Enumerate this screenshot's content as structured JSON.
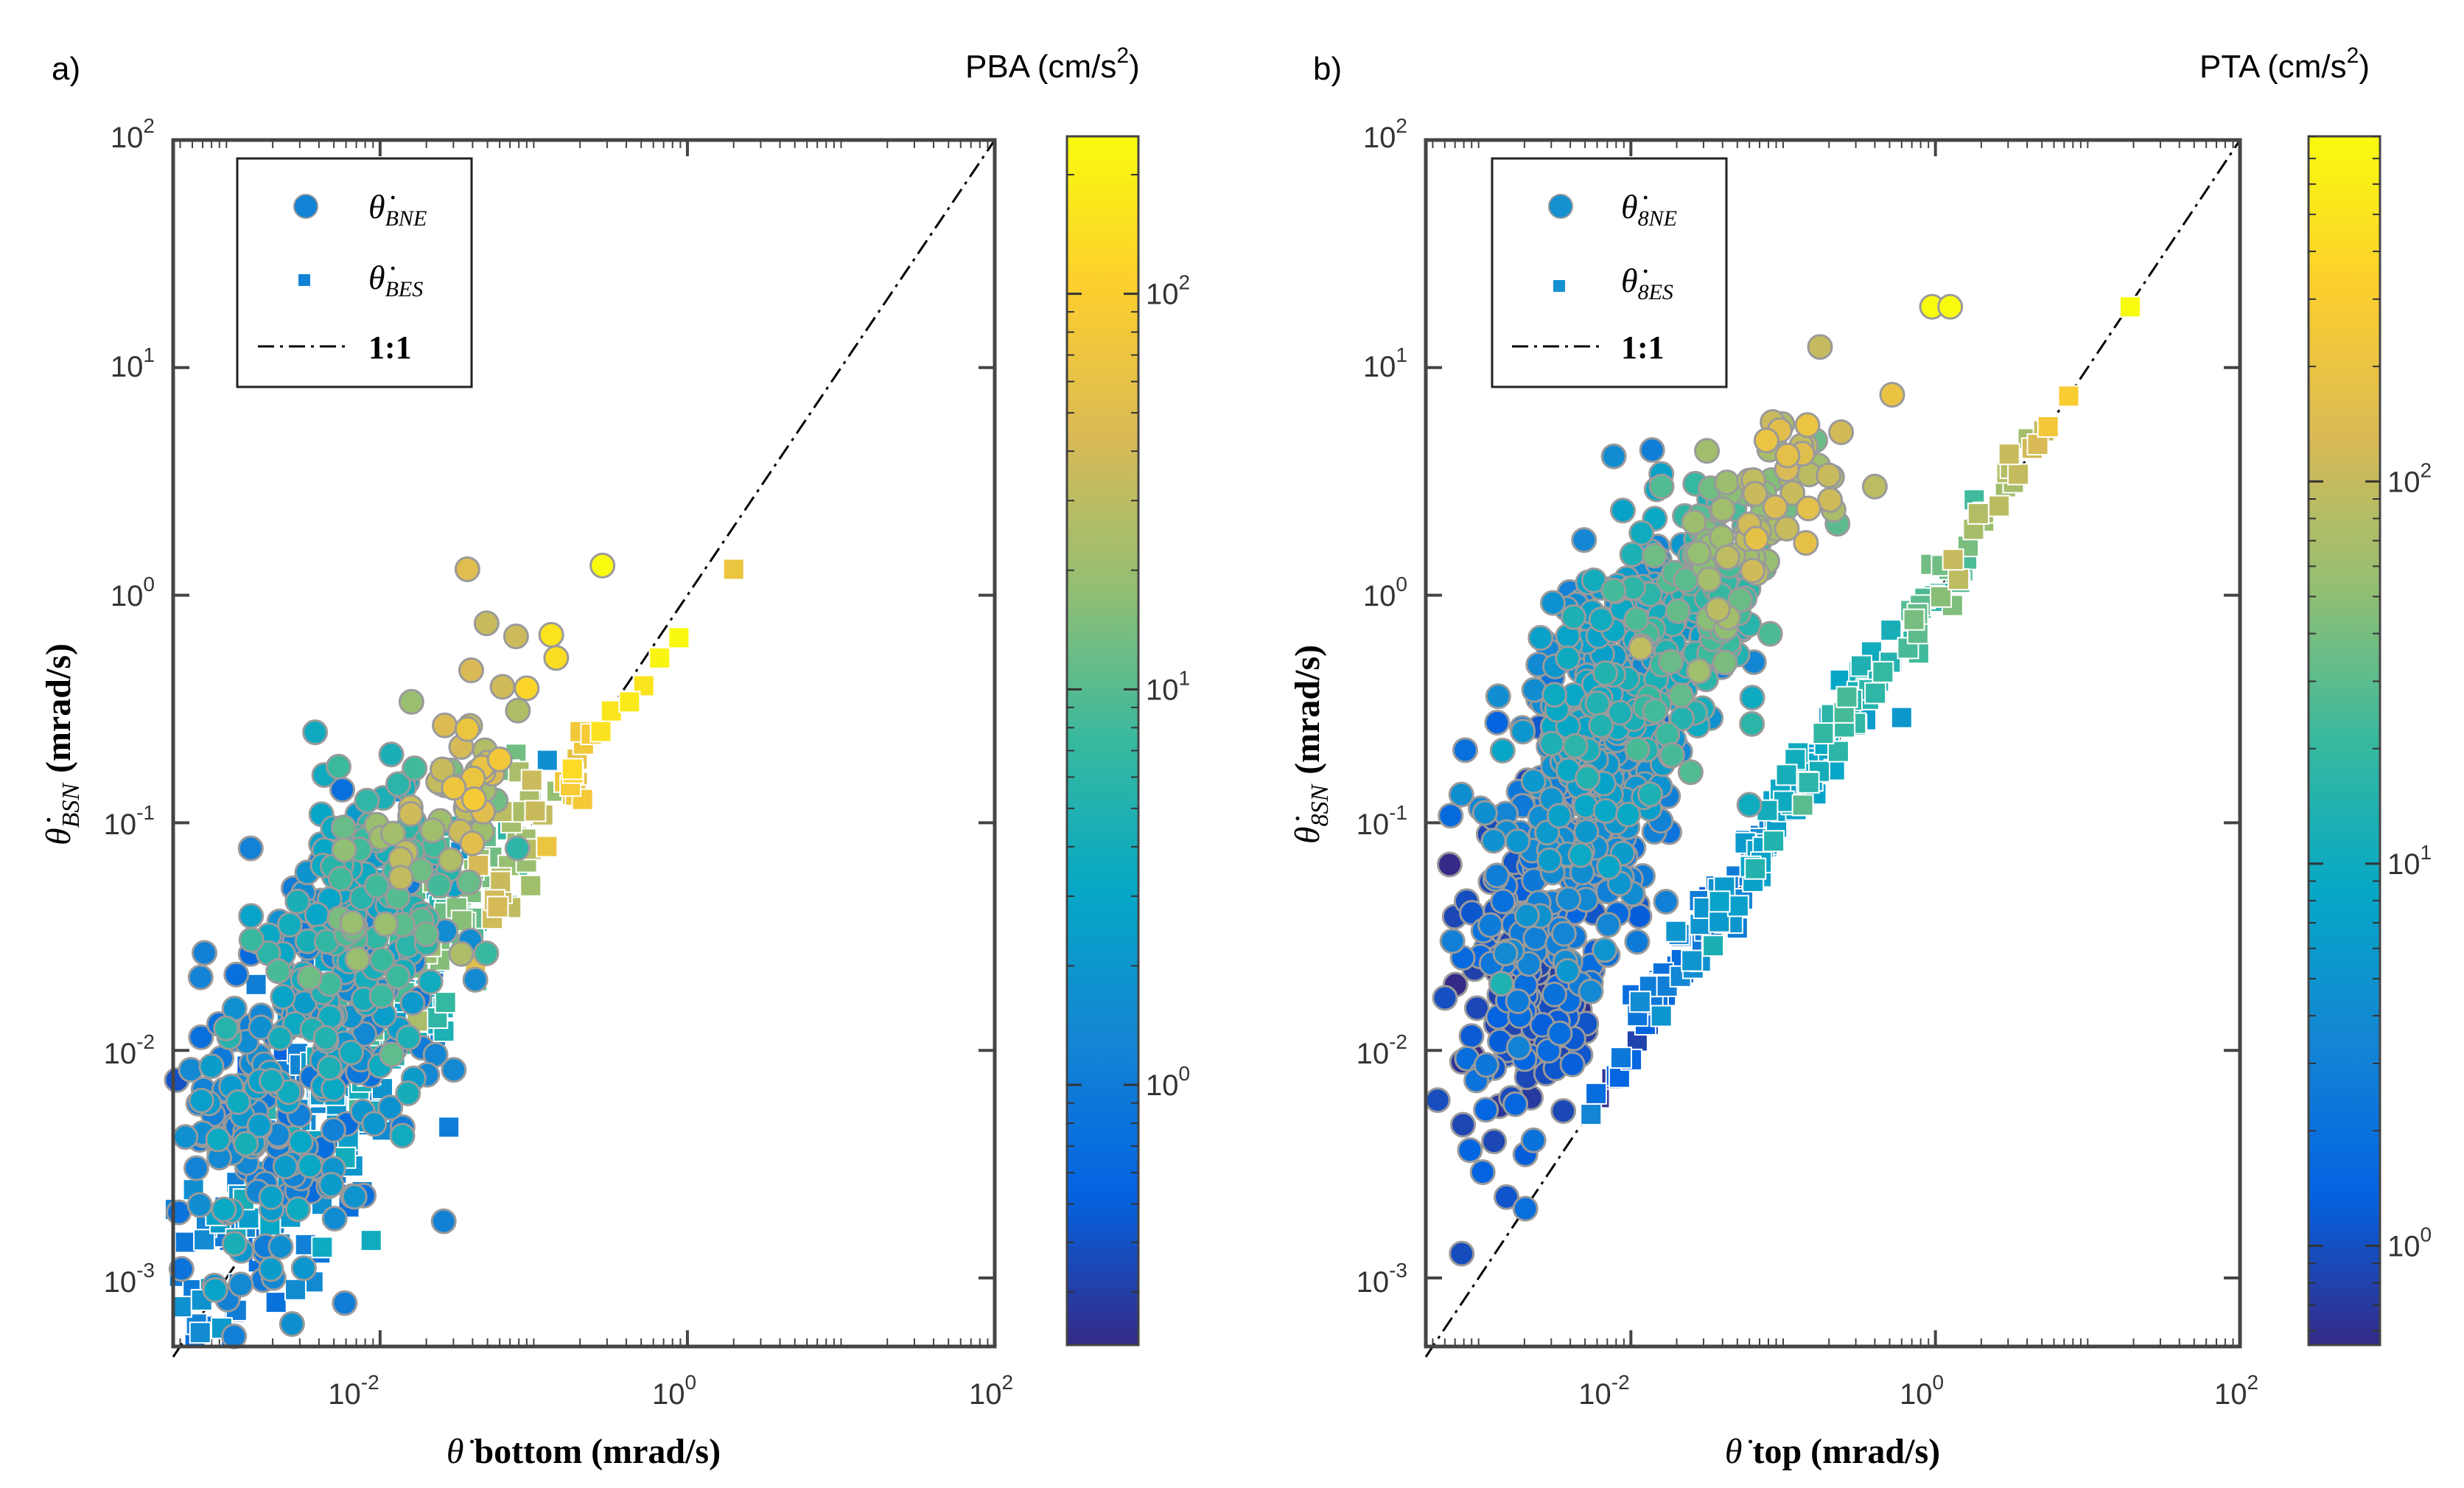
{
  "figure_labels": {
    "a": "a)",
    "b": "b)"
  },
  "chart_data": [
    {
      "id": "a",
      "type": "scatter",
      "panel_label": "a)",
      "xscale": "log",
      "yscale": "log",
      "xlim": [
        0.00045,
        100
      ],
      "ylim": [
        0.0005,
        100
      ],
      "x_ticks": [
        0.01,
        1,
        100
      ],
      "x_tick_labels": [
        {
          "base": "10",
          "exp": "-2"
        },
        {
          "base": "10",
          "exp": "0"
        },
        {
          "base": "10",
          "exp": "2"
        }
      ],
      "y_ticks": [
        0.001,
        0.01,
        0.1,
        1,
        10,
        100
      ],
      "y_tick_labels": [
        {
          "base": "10",
          "exp": "-3"
        },
        {
          "base": "10",
          "exp": "-2"
        },
        {
          "base": "10",
          "exp": "-1"
        },
        {
          "base": "10",
          "exp": "0"
        },
        {
          "base": "10",
          "exp": "1"
        },
        {
          "base": "10",
          "exp": "2"
        }
      ],
      "xlabel_prefix": "θ̇",
      "xlabel_main": "bottom (mrad/s)",
      "ylabel_symbol": "θ̇",
      "ylabel_sub": "BSN",
      "ylabel_main": "(mrad/s)",
      "colorbar": {
        "title": "PBA (cm/s",
        "title_exp": "2",
        "title_close": ")",
        "scale": "log",
        "range": [
          0.22,
          250
        ],
        "ticks": [
          1,
          10,
          100
        ],
        "tick_labels": [
          {
            "base": "10",
            "exp": "0"
          },
          {
            "base": "10",
            "exp": "1"
          },
          {
            "base": "10",
            "exp": "2"
          }
        ]
      },
      "legend": [
        {
          "marker": "circle",
          "symbol": "θ̇",
          "sub": "BNE"
        },
        {
          "marker": "square",
          "symbol": "θ̇",
          "sub": "BES"
        },
        {
          "marker": "dashdot",
          "label": "1:1"
        }
      ],
      "one_to_one": [
        [
          0.00045,
          0.00045
        ],
        [
          100,
          100
        ]
      ],
      "series": [
        {
          "name": "θ̇BNE",
          "marker": "circle",
          "clusters": [
            {
              "x": 0.002,
              "y": 0.006,
              "sx": 0.55,
              "sy": 0.5,
              "n": 150,
              "c": 1.0
            },
            {
              "x": 0.0035,
              "y": 0.013,
              "sx": 0.4,
              "sy": 0.45,
              "n": 110,
              "c": 2.0
            },
            {
              "x": 0.006,
              "y": 0.025,
              "sx": 0.35,
              "sy": 0.4,
              "n": 80,
              "c": 4.0
            },
            {
              "x": 0.012,
              "y": 0.05,
              "sx": 0.3,
              "sy": 0.3,
              "n": 50,
              "c": 8.0
            },
            {
              "x": 0.03,
              "y": 0.11,
              "sx": 0.25,
              "sy": 0.25,
              "n": 30,
              "c": 25.0
            },
            {
              "x": 0.045,
              "y": 0.18,
              "sx": 0.15,
              "sy": 0.15,
              "n": 14,
              "c": 50.0
            }
          ],
          "points": [
            {
              "x": 0.00095,
              "y": 0.0052,
              "c": 0.7
            },
            {
              "x": 0.0013,
              "y": 0.012,
              "c": 1.0
            },
            {
              "x": 0.0016,
              "y": 0.03,
              "c": 1.3
            },
            {
              "x": 0.0024,
              "y": 0.016,
              "c": 1.2
            },
            {
              "x": 0.0056,
              "y": 0.065,
              "c": 5.0
            },
            {
              "x": 0.016,
              "y": 0.34,
              "c": 20
            },
            {
              "x": 0.014,
              "y": 0.0046,
              "c": 1.0
            },
            {
              "x": 0.06,
              "y": 0.19,
              "c": 80
            },
            {
              "x": 0.09,
              "y": 0.39,
              "c": 120
            },
            {
              "x": 0.13,
              "y": 0.67,
              "c": 160
            },
            {
              "x": 0.14,
              "y": 0.53,
              "c": 140
            },
            {
              "x": 0.037,
              "y": 1.3,
              "c": 50
            },
            {
              "x": 0.28,
              "y": 1.35,
              "c": 250
            }
          ]
        },
        {
          "name": "θ̇BES",
          "marker": "square",
          "clusters": [
            {
              "x": 0.003,
              "y": 0.005,
              "sx": 0.45,
              "sy": 0.35,
              "n": 170,
              "c": 1.0
            },
            {
              "x": 0.006,
              "y": 0.012,
              "sx": 0.4,
              "sy": 0.3,
              "n": 130,
              "c": 2.0
            },
            {
              "x": 0.013,
              "y": 0.022,
              "sx": 0.3,
              "sy": 0.25,
              "n": 70,
              "c": 5.0
            },
            {
              "x": 0.03,
              "y": 0.04,
              "sx": 0.25,
              "sy": 0.2,
              "n": 45,
              "c": 12.0
            },
            {
              "x": 0.08,
              "y": 0.08,
              "sx": 0.2,
              "sy": 0.15,
              "n": 25,
              "c": 30.0
            },
            {
              "x": 0.17,
              "y": 0.16,
              "sx": 0.12,
              "sy": 0.1,
              "n": 14,
              "c": 80.0
            }
          ],
          "points": [
            {
              "x": 0.028,
              "y": 0.0046,
              "c": 1.0
            },
            {
              "x": 0.0043,
              "y": 0.0027,
              "c": 0.9
            },
            {
              "x": 0.025,
              "y": 0.06,
              "c": 3.0
            },
            {
              "x": 0.32,
              "y": 0.31,
              "c": 160
            },
            {
              "x": 0.42,
              "y": 0.34,
              "c": 180
            },
            {
              "x": 0.52,
              "y": 0.4,
              "c": 160
            },
            {
              "x": 0.66,
              "y": 0.53,
              "c": 220
            },
            {
              "x": 0.88,
              "y": 0.65,
              "c": 240
            },
            {
              "x": 2.0,
              "y": 1.3,
              "c": 70
            }
          ]
        }
      ]
    },
    {
      "id": "b",
      "type": "scatter",
      "panel_label": "b)",
      "xscale": "log",
      "yscale": "log",
      "xlim": [
        0.00045,
        100
      ],
      "ylim": [
        0.0005,
        100
      ],
      "x_ticks": [
        0.01,
        1,
        100
      ],
      "x_tick_labels": [
        {
          "base": "10",
          "exp": "-2"
        },
        {
          "base": "10",
          "exp": "0"
        },
        {
          "base": "10",
          "exp": "2"
        }
      ],
      "y_ticks": [
        0.001,
        0.01,
        0.1,
        1,
        10,
        100
      ],
      "y_tick_labels": [
        {
          "base": "10",
          "exp": "-3"
        },
        {
          "base": "10",
          "exp": "-2"
        },
        {
          "base": "10",
          "exp": "-1"
        },
        {
          "base": "10",
          "exp": "0"
        },
        {
          "base": "10",
          "exp": "1"
        },
        {
          "base": "10",
          "exp": "2"
        }
      ],
      "xlabel_prefix": "θ̇",
      "xlabel_main": "top (mrad/s)",
      "ylabel_symbol": "θ̇",
      "ylabel_sub": "8SN",
      "ylabel_main": "(mrad/s)",
      "colorbar": {
        "title": "PTA (cm/s",
        "title_exp": "2",
        "title_close": ")",
        "scale": "log",
        "range": [
          0.55,
          800
        ],
        "ticks": [
          1,
          10,
          100
        ],
        "tick_labels": [
          {
            "base": "10",
            "exp": "0"
          },
          {
            "base": "10",
            "exp": "1"
          },
          {
            "base": "10",
            "exp": "2"
          }
        ]
      },
      "legend": [
        {
          "marker": "circle",
          "symbol": "θ̇",
          "sub": "8NE"
        },
        {
          "marker": "square",
          "symbol": "θ̇",
          "sub": "8ES"
        },
        {
          "marker": "dashdot",
          "label": "1:1"
        }
      ],
      "one_to_one": [
        [
          0.00045,
          0.00045
        ],
        [
          100,
          100
        ]
      ],
      "series": [
        {
          "name": "θ̇8NE",
          "marker": "circle",
          "clusters": [
            {
              "x": 0.0022,
              "y": 0.02,
              "sx": 0.28,
              "sy": 0.4,
              "n": 110,
              "c": 1.0
            },
            {
              "x": 0.0035,
              "y": 0.06,
              "sx": 0.3,
              "sy": 0.4,
              "n": 150,
              "c": 2.0
            },
            {
              "x": 0.006,
              "y": 0.2,
              "sx": 0.3,
              "sy": 0.35,
              "n": 200,
              "c": 4.0
            },
            {
              "x": 0.012,
              "y": 0.5,
              "sx": 0.3,
              "sy": 0.3,
              "n": 180,
              "c": 8.0
            },
            {
              "x": 0.03,
              "y": 1.0,
              "sx": 0.25,
              "sy": 0.25,
              "n": 90,
              "c": 20.0
            },
            {
              "x": 0.06,
              "y": 2.0,
              "sx": 0.25,
              "sy": 0.2,
              "n": 50,
              "c": 60.0
            },
            {
              "x": 0.12,
              "y": 4.0,
              "sx": 0.2,
              "sy": 0.15,
              "n": 20,
              "c": 150.0
            }
          ],
          "points": [
            {
              "x": 0.0012,
              "y": 0.055,
              "c": 0.9
            },
            {
              "x": 0.0013,
              "y": 0.013,
              "c": 0.8
            },
            {
              "x": 0.0022,
              "y": 0.0062,
              "c": 0.7
            },
            {
              "x": 0.0021,
              "y": 0.008,
              "c": 0.7
            },
            {
              "x": 0.0045,
              "y": 0.022,
              "c": 1.5
            },
            {
              "x": 0.011,
              "y": 0.03,
              "c": 2.5
            },
            {
              "x": 0.017,
              "y": 0.045,
              "c": 3.0
            },
            {
              "x": 0.06,
              "y": 0.12,
              "c": 10
            },
            {
              "x": 0.4,
              "y": 3.0,
              "c": 90
            },
            {
              "x": 0.24,
              "y": 5.2,
              "c": 120
            },
            {
              "x": 0.52,
              "y": 7.6,
              "c": 200
            },
            {
              "x": 0.95,
              "y": 18.5,
              "c": 800
            },
            {
              "x": 1.25,
              "y": 18.5,
              "c": 800
            }
          ]
        },
        {
          "name": "θ̇8ES",
          "marker": "square",
          "clusters": [
            {
              "x": 0.015,
              "y": 0.017,
              "sx": 0.18,
              "sy": 0.08,
              "n": 30,
              "c": 2.0
            },
            {
              "x": 0.04,
              "y": 0.045,
              "sx": 0.18,
              "sy": 0.08,
              "n": 40,
              "c": 4.0
            },
            {
              "x": 0.1,
              "y": 0.11,
              "sx": 0.18,
              "sy": 0.08,
              "n": 40,
              "c": 7.0
            },
            {
              "x": 0.3,
              "y": 0.32,
              "sx": 0.18,
              "sy": 0.08,
              "n": 35,
              "c": 12.0
            },
            {
              "x": 0.9,
              "y": 0.95,
              "sx": 0.15,
              "sy": 0.07,
              "n": 25,
              "c": 25.0
            },
            {
              "x": 2.5,
              "y": 2.6,
              "sx": 0.15,
              "sy": 0.07,
              "n": 15,
              "c": 80.0
            }
          ],
          "points": [
            {
              "x": 0.0062,
              "y": 0.0062,
              "c": 0.6
            },
            {
              "x": 0.0075,
              "y": 0.0075,
              "c": 0.65
            },
            {
              "x": 0.009,
              "y": 0.0092,
              "c": 0.7
            },
            {
              "x": 0.011,
              "y": 0.011,
              "c": 0.8
            },
            {
              "x": 0.013,
              "y": 0.013,
              "c": 0.9
            },
            {
              "x": 0.02,
              "y": 0.021,
              "c": 1.4
            },
            {
              "x": 0.2,
              "y": 0.29,
              "c": 4.0
            },
            {
              "x": 0.6,
              "y": 0.29,
              "c": 5.5
            },
            {
              "x": 3.5,
              "y": 3.4,
              "c": 100
            },
            {
              "x": 4.7,
              "y": 4.6,
              "c": 130
            },
            {
              "x": 5.5,
              "y": 5.5,
              "c": 250
            },
            {
              "x": 7.5,
              "y": 7.5,
              "c": 300
            },
            {
              "x": 19.0,
              "y": 18.5,
              "c": 800
            }
          ]
        }
      ]
    }
  ]
}
